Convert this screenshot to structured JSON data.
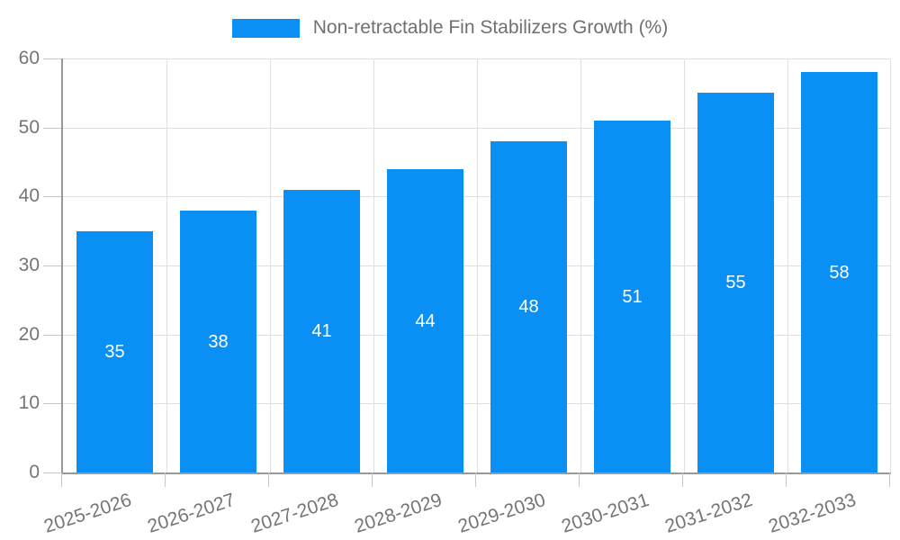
{
  "legend": {
    "label": "Non-retractable Fin Stabilizers Growth (%)",
    "swatch_color": "#0a90f5"
  },
  "chart_data": {
    "type": "bar",
    "title": "",
    "categories": [
      "2025-2026",
      "2026-2027",
      "2027-2028",
      "2028-2029",
      "2029-2030",
      "2030-2031",
      "2031-2032",
      "2032-2033"
    ],
    "series": [
      {
        "name": "Non-retractable Fin Stabilizers Growth (%)",
        "values": [
          35,
          38,
          41,
          44,
          48,
          51,
          55,
          58
        ]
      }
    ],
    "xlabel": "",
    "ylabel": "",
    "ylim": [
      0,
      60
    ],
    "yticks": [
      0,
      10,
      20,
      30,
      40,
      50,
      60
    ],
    "grid": true,
    "legend_position": "top-center",
    "bar_labels_inside": true,
    "colors": {
      "bar": "#0a90f5",
      "bar_label": "#ffffff",
      "grid_line": "#e0e0e0",
      "axis_line": "#999999",
      "tick_mark": "#c6c6c6",
      "tick_label": "#757575",
      "legend_text": "#707070",
      "background": "#ffffff"
    }
  }
}
